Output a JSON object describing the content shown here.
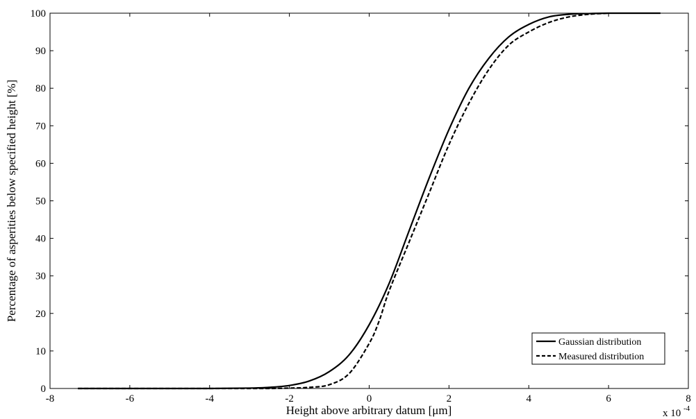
{
  "chart_data": {
    "type": "line",
    "title": "",
    "xlabel": "Height above arbitrary datum [μm]",
    "ylabel": "Percentage of asperities below specified height [%]",
    "x_multiplier_base": "x 10",
    "x_multiplier_exponent": "-4",
    "xlim": [
      -8,
      8
    ],
    "ylim": [
      0,
      100
    ],
    "x_ticks": [
      -8,
      -6,
      -4,
      -2,
      0,
      2,
      4,
      6,
      8
    ],
    "y_ticks": [
      0,
      10,
      20,
      30,
      40,
      50,
      60,
      70,
      80,
      90,
      100
    ],
    "grid": false,
    "legend_position": "bottom-right",
    "series": [
      {
        "name": "Gaussian distribution",
        "style": "solid",
        "color": "#000000",
        "x": [
          -7.3,
          -6,
          -4,
          -3,
          -2.5,
          -2,
          -1.5,
          -1,
          -0.5,
          0,
          0.5,
          1,
          1.5,
          2,
          2.5,
          3,
          3.5,
          4,
          4.5,
          5,
          5.5,
          6,
          6.5,
          7.3
        ],
        "y": [
          0,
          0,
          0,
          0.1,
          0.3,
          0.8,
          2,
          4.5,
          9,
          17,
          28,
          42,
          56,
          69,
          80,
          88,
          93.7,
          97,
          99,
          99.7,
          99.9,
          100,
          100,
          100
        ]
      },
      {
        "name": "Measured distribution",
        "style": "dashed",
        "color": "#000000",
        "x": [
          -7.3,
          -4,
          -3,
          -2.5,
          -2,
          -1.5,
          -1,
          -0.5,
          0,
          0.25,
          0.5,
          1,
          1.5,
          2,
          2.5,
          3,
          3.5,
          4,
          4.5,
          5,
          5.5,
          6
        ],
        "y": [
          0,
          0,
          0,
          0,
          0.1,
          0.3,
          1,
          4,
          12,
          18,
          26,
          39,
          52,
          65,
          76,
          85,
          91.5,
          95,
          97.5,
          99,
          99.7,
          100
        ]
      }
    ]
  }
}
